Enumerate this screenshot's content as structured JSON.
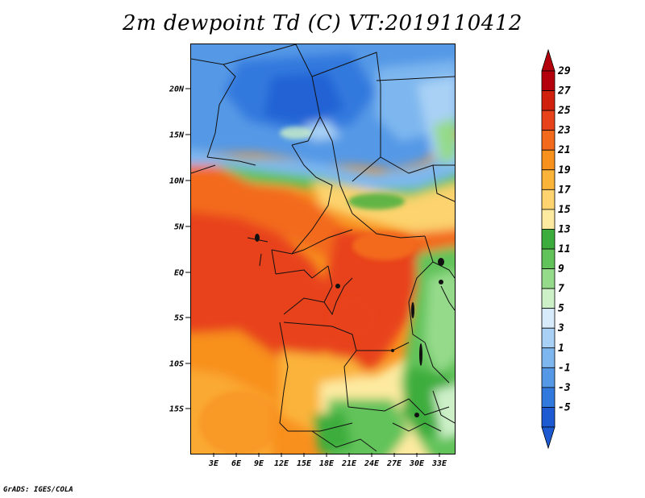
{
  "title": "2m dewpoint Td (C) VT:2019110412",
  "credit": "GrADS: IGES/COLA",
  "lat_ticks": [
    "20N",
    "15N",
    "10N",
    "5N",
    "EQ",
    "5S",
    "10S",
    "15S"
  ],
  "lon_ticks": [
    "3E",
    "6E",
    "9E",
    "12E",
    "15E",
    "18E",
    "21E",
    "24E",
    "27E",
    "30E",
    "33E"
  ],
  "colorbar": {
    "labels": [
      "29",
      "27",
      "25",
      "23",
      "21",
      "19",
      "17",
      "15",
      "13",
      "11",
      "9",
      "7",
      "5",
      "3",
      "1",
      "-1",
      "-3",
      "-5"
    ],
    "colors": [
      "#b4000c",
      "#d2200e",
      "#e8421a",
      "#f36a1c",
      "#f8901e",
      "#fbb33a",
      "#fcd36e",
      "#fdeaa0",
      "#3cad3c",
      "#62c35a",
      "#94da8a",
      "#cdf0c8",
      "#d7ebfb",
      "#a9d1f5",
      "#7eb7ef",
      "#5599e6",
      "#3279de",
      "#1d59d0"
    ]
  },
  "chart_data": {
    "type": "heatmap",
    "title": "2m dewpoint Td (C) VT:2019110412",
    "variable": "2m dewpoint Td",
    "unit": "C",
    "valid_time": "2019110412",
    "lon_range": [
      "0E",
      "35E"
    ],
    "lat_range": [
      "20S",
      "25N"
    ],
    "colorbar_range": [
      -5,
      29
    ]
  }
}
